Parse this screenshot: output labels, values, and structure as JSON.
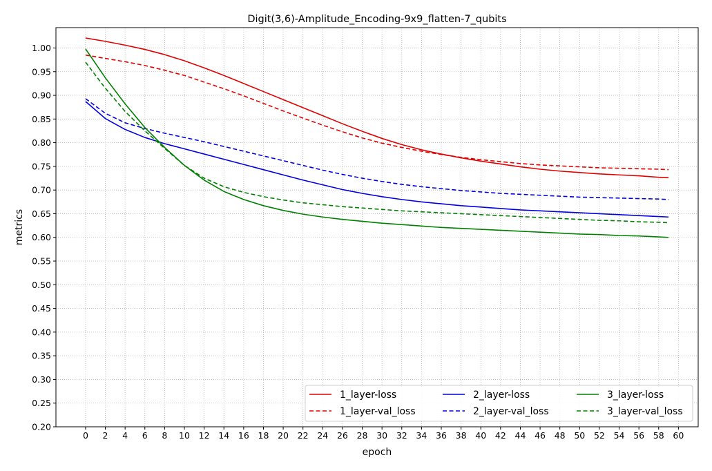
{
  "chart_data": {
    "type": "line",
    "title": "Digit(3,6)-Amplitude_Encoding-9x9_flatten-7_qubits",
    "xlabel": "epoch",
    "ylabel": "metrics",
    "xlim": [
      -3,
      62
    ],
    "ylim": [
      0.2,
      1.043
    ],
    "xticks": [
      0,
      2,
      4,
      6,
      8,
      10,
      12,
      14,
      16,
      18,
      20,
      22,
      24,
      26,
      28,
      30,
      32,
      34,
      36,
      38,
      40,
      42,
      44,
      46,
      48,
      50,
      52,
      54,
      56,
      58,
      60
    ],
    "yticks": [
      0.2,
      0.25,
      0.3,
      0.35,
      0.4,
      0.45,
      0.5,
      0.55,
      0.6,
      0.65,
      0.7,
      0.75,
      0.8,
      0.85,
      0.9,
      0.95,
      1.0
    ],
    "ytick_labels": [
      "0.20",
      "0.25",
      "0.30",
      "0.35",
      "0.40",
      "0.45",
      "0.50",
      "0.55",
      "0.60",
      "0.65",
      "0.70",
      "0.75",
      "0.80",
      "0.85",
      "0.90",
      "0.95",
      "1.00"
    ],
    "grid": true,
    "legend": {
      "placement": "bottom-right",
      "columns": 3
    },
    "x": [
      0,
      2,
      4,
      6,
      8,
      10,
      12,
      14,
      16,
      18,
      20,
      22,
      24,
      26,
      28,
      30,
      32,
      34,
      36,
      38,
      40,
      42,
      44,
      46,
      48,
      50,
      52,
      54,
      56,
      58,
      59
    ],
    "series": [
      {
        "name": "1_layer-loss",
        "color": "#e00000",
        "dash": false,
        "values": [
          1.021,
          1.014,
          1.006,
          0.997,
          0.986,
          0.973,
          0.958,
          0.942,
          0.925,
          0.908,
          0.891,
          0.874,
          0.857,
          0.84,
          0.824,
          0.809,
          0.796,
          0.785,
          0.776,
          0.768,
          0.761,
          0.755,
          0.749,
          0.744,
          0.74,
          0.737,
          0.734,
          0.732,
          0.73,
          0.727,
          0.726
        ]
      },
      {
        "name": "1_layer-val_loss",
        "color": "#e00000",
        "dash": true,
        "values": [
          0.985,
          0.978,
          0.971,
          0.963,
          0.953,
          0.942,
          0.928,
          0.914,
          0.899,
          0.883,
          0.867,
          0.852,
          0.837,
          0.823,
          0.81,
          0.799,
          0.79,
          0.782,
          0.775,
          0.769,
          0.764,
          0.76,
          0.756,
          0.753,
          0.751,
          0.749,
          0.747,
          0.746,
          0.745,
          0.744,
          0.743
        ]
      },
      {
        "name": "2_layer-loss",
        "color": "#0000e0",
        "dash": false,
        "values": [
          0.887,
          0.851,
          0.828,
          0.811,
          0.798,
          0.787,
          0.776,
          0.765,
          0.754,
          0.743,
          0.732,
          0.721,
          0.711,
          0.701,
          0.693,
          0.686,
          0.68,
          0.675,
          0.671,
          0.667,
          0.664,
          0.661,
          0.658,
          0.656,
          0.654,
          0.652,
          0.65,
          0.648,
          0.646,
          0.644,
          0.643
        ]
      },
      {
        "name": "2_layer-val_loss",
        "color": "#0000e0",
        "dash": true,
        "values": [
          0.893,
          0.862,
          0.842,
          0.83,
          0.82,
          0.811,
          0.802,
          0.792,
          0.782,
          0.772,
          0.762,
          0.752,
          0.742,
          0.733,
          0.725,
          0.718,
          0.712,
          0.707,
          0.703,
          0.699,
          0.696,
          0.693,
          0.691,
          0.689,
          0.687,
          0.685,
          0.684,
          0.683,
          0.682,
          0.681,
          0.68
        ]
      },
      {
        "name": "3_layer-loss",
        "color": "#008000",
        "dash": false,
        "values": [
          0.998,
          0.937,
          0.882,
          0.832,
          0.79,
          0.752,
          0.721,
          0.697,
          0.68,
          0.667,
          0.657,
          0.649,
          0.643,
          0.638,
          0.634,
          0.63,
          0.627,
          0.624,
          0.621,
          0.619,
          0.617,
          0.615,
          0.613,
          0.611,
          0.609,
          0.607,
          0.606,
          0.604,
          0.603,
          0.601,
          0.6
        ]
      },
      {
        "name": "3_layer-val_loss",
        "color": "#008000",
        "dash": true,
        "values": [
          0.97,
          0.915,
          0.866,
          0.825,
          0.788,
          0.752,
          0.725,
          0.707,
          0.695,
          0.686,
          0.679,
          0.673,
          0.669,
          0.665,
          0.662,
          0.659,
          0.656,
          0.654,
          0.652,
          0.65,
          0.648,
          0.646,
          0.644,
          0.642,
          0.64,
          0.638,
          0.636,
          0.635,
          0.633,
          0.632,
          0.631
        ]
      }
    ]
  }
}
